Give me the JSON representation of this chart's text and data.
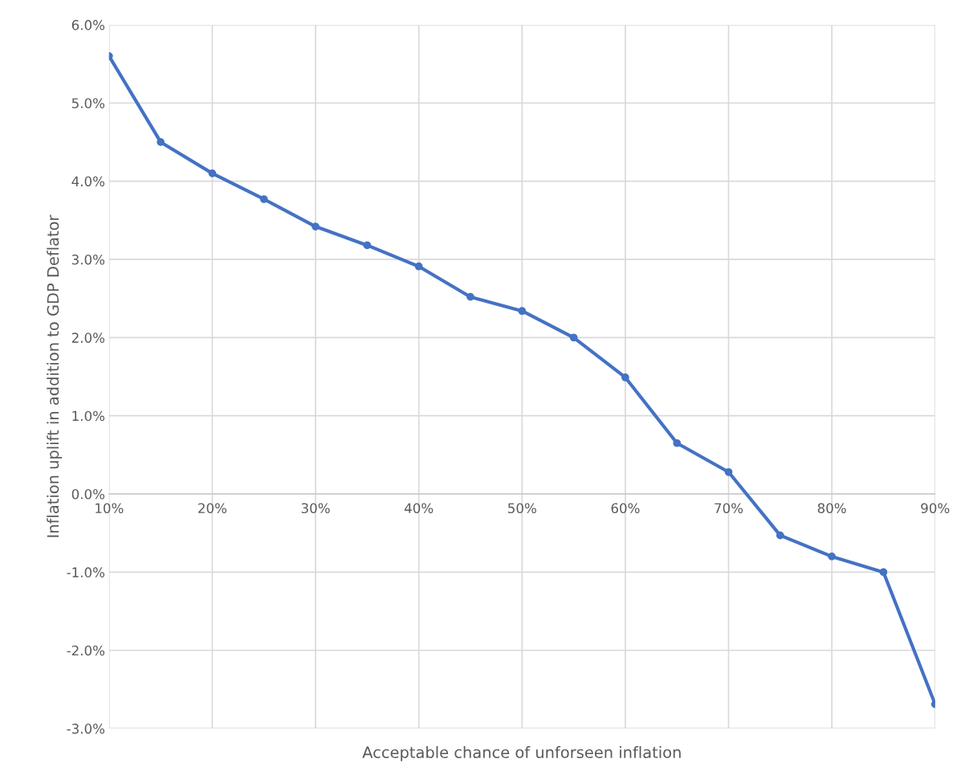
{
  "chart_data": {
    "type": "line",
    "xlabel": "Acceptable chance of unforseen inflation",
    "ylabel": "Inflation uplift in addition to GDP Deflator",
    "x": [
      10,
      15,
      20,
      25,
      30,
      35,
      40,
      45,
      50,
      55,
      60,
      65,
      70,
      75,
      80,
      85,
      90
    ],
    "series": [
      {
        "color": "#4472c4",
        "values": [
          5.6,
          4.5,
          4.1,
          3.77,
          3.42,
          3.18,
          2.91,
          2.52,
          2.34,
          2.0,
          1.49,
          0.65,
          0.28,
          -0.53,
          -0.8,
          -1.0,
          -2.69
        ]
      }
    ],
    "xlim": [
      10,
      90
    ],
    "xticks": [
      {
        "value": 10,
        "label": "10%"
      },
      {
        "value": 20,
        "label": "20%"
      },
      {
        "value": 30,
        "label": "30%"
      },
      {
        "value": 40,
        "label": "40%"
      },
      {
        "value": 50,
        "label": "50%"
      },
      {
        "value": 60,
        "label": "60%"
      },
      {
        "value": 70,
        "label": "70%"
      },
      {
        "value": 80,
        "label": "80%"
      },
      {
        "value": 90,
        "label": "90%"
      }
    ],
    "ylim": [
      -3,
      6
    ],
    "yticks": [
      {
        "value": -3,
        "label": "-3.0%"
      },
      {
        "value": -2,
        "label": "-2.0%"
      },
      {
        "value": -1,
        "label": "-1.0%"
      },
      {
        "value": 0,
        "label": "0.0%"
      },
      {
        "value": 1,
        "label": "1.0%"
      },
      {
        "value": 2,
        "label": "2.0%"
      },
      {
        "value": 3,
        "label": "3.0%"
      },
      {
        "value": 4,
        "label": "4.0%"
      },
      {
        "value": 5,
        "label": "5.0%"
      },
      {
        "value": 6,
        "label": "6.0%"
      }
    ],
    "grid": true,
    "legend": false,
    "marker": "circle",
    "line_style": "solid"
  }
}
